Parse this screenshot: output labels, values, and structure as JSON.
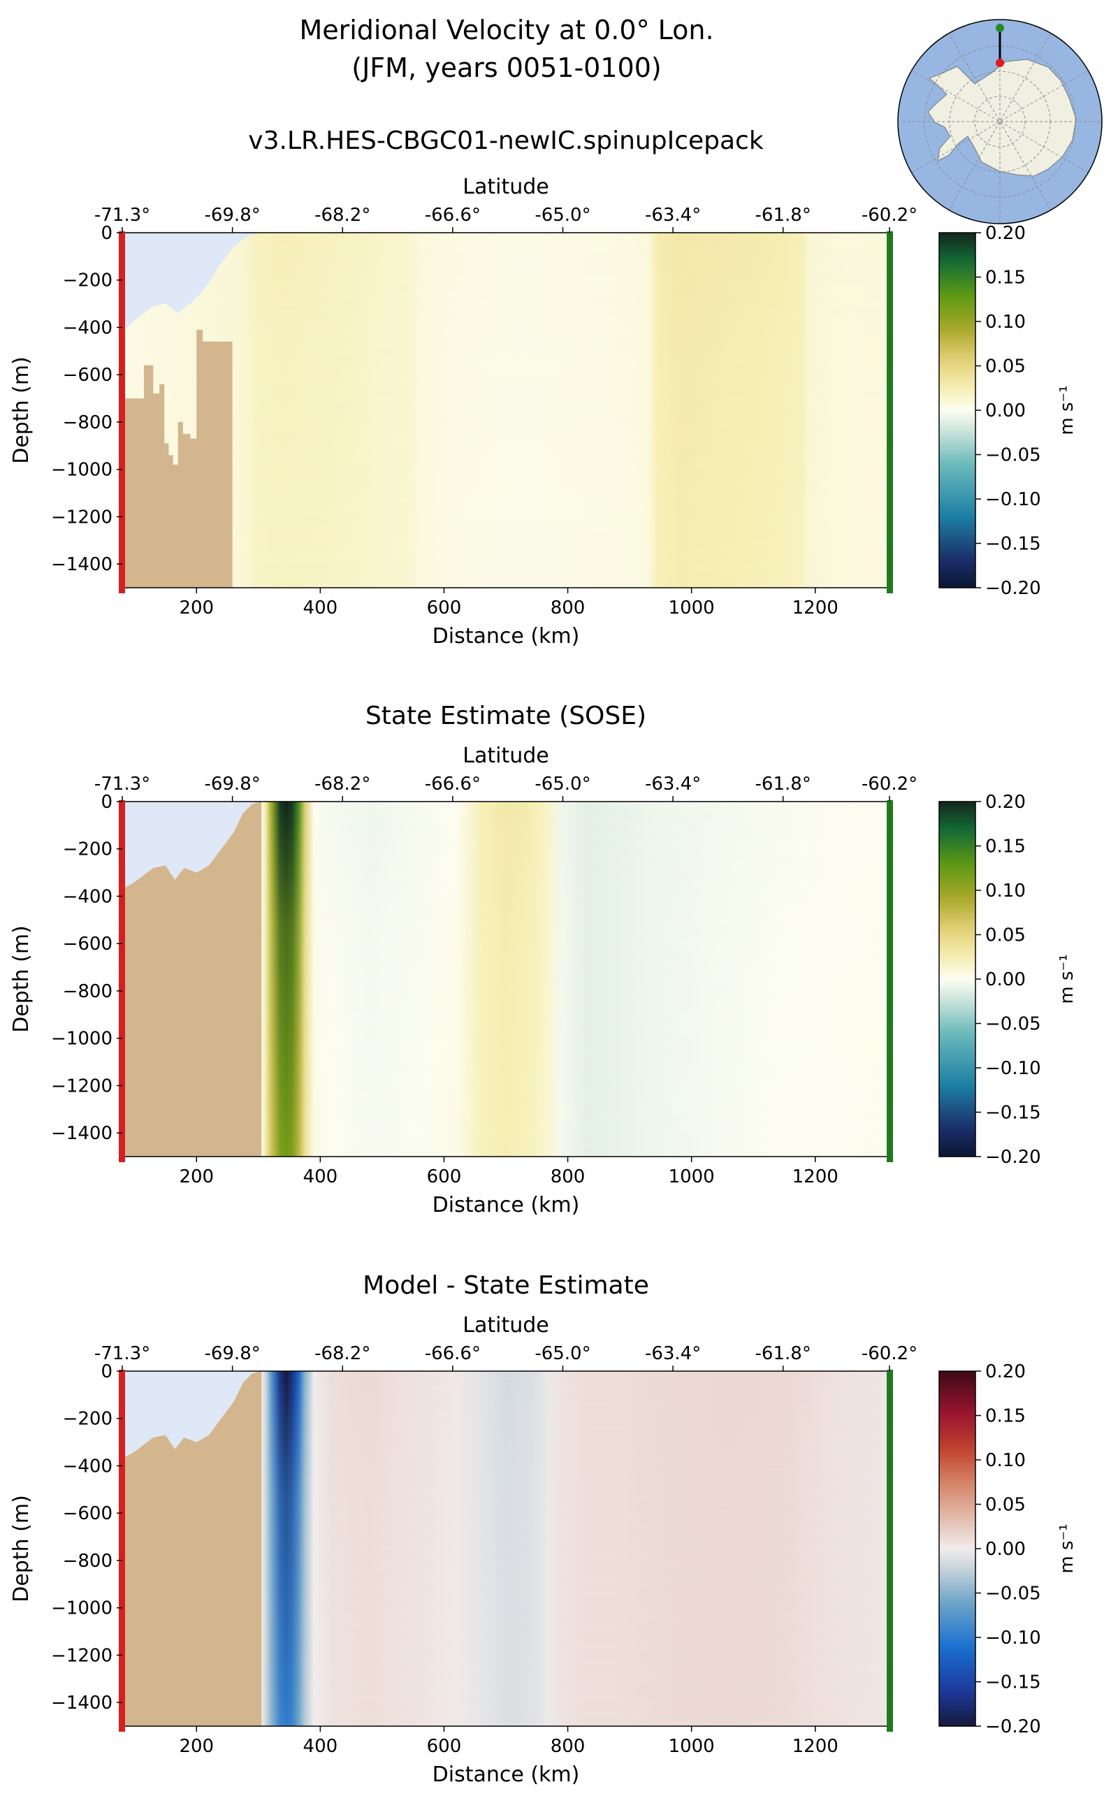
{
  "figure": {
    "title_line1": "Meridional Velocity at 0.0° Lon.",
    "title_line2": "(JFM, years 0051-0100)"
  },
  "inset_map": {
    "ocean_color": "#97b6e2",
    "land_color": "#efefe2",
    "north_marker_color": "#228b22",
    "south_marker_color": "#e51a1a"
  },
  "colors": {
    "seafloor": "#d3b68e",
    "ice_shelf": "#dfe8f6",
    "left_boundary": "#d42020",
    "right_boundary": "#1f7a1f"
  },
  "chart_data": [
    {
      "type": "heatmap",
      "id": "model",
      "title": "v3.LR.HES-CBGC01-newIC.spinupIcepack",
      "xlabel": "Distance (km)",
      "ylabel": "Depth (m)",
      "top_axis_label": "Latitude",
      "xlim": [
        80,
        1320
      ],
      "ylim": [
        -1500,
        0
      ],
      "xticks": [
        200,
        400,
        600,
        800,
        1000,
        1200
      ],
      "yticks": [
        0,
        -200,
        -400,
        -600,
        -800,
        -1000,
        -1200,
        -1400
      ],
      "top_ticks": [
        {
          "km": 80,
          "label": "-71.3°"
        },
        {
          "km": 258,
          "label": "-69.8°"
        },
        {
          "km": 436,
          "label": "-68.2°"
        },
        {
          "km": 614,
          "label": "-66.6°"
        },
        {
          "km": 792,
          "label": "-65.0°"
        },
        {
          "km": 970,
          "label": "-63.4°"
        },
        {
          "km": 1148,
          "label": "-61.8°"
        },
        {
          "km": 1320,
          "label": "-60.2°"
        }
      ],
      "colorbar": {
        "label": "m s⁻¹",
        "cmap": "speed_diverging",
        "range": [
          -0.2,
          0.2
        ],
        "ticks": [
          "0.20",
          "0.15",
          "0.10",
          "0.05",
          "0.00",
          "−0.05",
          "−0.10",
          "−0.15",
          "−0.20"
        ]
      },
      "field": {
        "x_km": [
          80,
          260,
          280,
          300,
          340,
          400,
          450,
          500,
          540,
          560,
          600,
          650,
          700,
          750,
          800,
          850,
          900,
          930,
          945,
          980,
          1020,
          1060,
          1100,
          1150,
          1180,
          1190,
          1250,
          1320
        ],
        "v_surface": [
          0.005,
          0.01,
          0.014,
          0.02,
          0.022,
          0.02,
          0.018,
          0.015,
          0.014,
          0.008,
          0.007,
          0.005,
          0.004,
          0.004,
          0.005,
          0.006,
          0.007,
          0.008,
          0.026,
          0.03,
          0.029,
          0.028,
          0.027,
          0.025,
          0.022,
          0.01,
          0.008,
          0.009
        ],
        "v_deep": [
          0.005,
          0.01,
          0.012,
          0.017,
          0.019,
          0.017,
          0.016,
          0.014,
          0.013,
          0.008,
          0.006,
          0.004,
          0.003,
          0.003,
          0.004,
          0.005,
          0.006,
          0.007,
          0.022,
          0.026,
          0.025,
          0.024,
          0.023,
          0.021,
          0.019,
          0.01,
          0.008,
          0.008
        ]
      },
      "seafloor": {
        "x_km": [
          80,
          90,
          115,
          130,
          140,
          148,
          155,
          162,
          170,
          178,
          190,
          200,
          210,
          258
        ],
        "depth_m": [
          -700,
          -700,
          -560,
          -680,
          -640,
          -890,
          -940,
          -980,
          -800,
          -850,
          -870,
          -410,
          -460,
          -640
        ]
      },
      "ice_shelf": {
        "x_km": [
          80,
          100,
          130,
          150,
          170,
          190,
          210,
          240,
          260,
          280,
          300
        ],
        "depth_m": [
          -420,
          -370,
          -310,
          -300,
          -340,
          -300,
          -250,
          -130,
          -60,
          -20,
          0
        ]
      }
    },
    {
      "type": "heatmap",
      "id": "sose",
      "title": "State Estimate (SOSE)",
      "xlabel": "Distance (km)",
      "ylabel": "Depth (m)",
      "top_axis_label": "Latitude",
      "xlim": [
        80,
        1320
      ],
      "ylim": [
        -1500,
        0
      ],
      "xticks": [
        200,
        400,
        600,
        800,
        1000,
        1200
      ],
      "yticks": [
        0,
        -200,
        -400,
        -600,
        -800,
        -1000,
        -1200,
        -1400
      ],
      "top_ticks": [
        {
          "km": 80,
          "label": "-71.3°"
        },
        {
          "km": 258,
          "label": "-69.8°"
        },
        {
          "km": 436,
          "label": "-68.2°"
        },
        {
          "km": 614,
          "label": "-66.6°"
        },
        {
          "km": 792,
          "label": "-65.0°"
        },
        {
          "km": 970,
          "label": "-63.4°"
        },
        {
          "km": 1148,
          "label": "-61.8°"
        },
        {
          "km": 1320,
          "label": "-60.2°"
        }
      ],
      "colorbar": {
        "label": "m s⁻¹",
        "cmap": "speed_diverging",
        "range": [
          -0.2,
          0.2
        ],
        "ticks": [
          "0.20",
          "0.15",
          "0.10",
          "0.05",
          "0.00",
          "−0.05",
          "−0.10",
          "−0.15",
          "−0.20"
        ]
      },
      "field": {
        "x_km": [
          80,
          305,
          312,
          322,
          335,
          345,
          355,
          365,
          375,
          390,
          420,
          480,
          560,
          620,
          660,
          700,
          740,
          770,
          790,
          830,
          880,
          950,
          1050,
          1150,
          1250,
          1320
        ],
        "v_surface": [
          0.0,
          0.0,
          0.03,
          0.1,
          0.19,
          0.2,
          0.19,
          0.14,
          0.06,
          0.0,
          -0.004,
          -0.006,
          -0.003,
          0.0,
          0.022,
          0.03,
          0.026,
          0.015,
          -0.006,
          -0.012,
          -0.01,
          -0.006,
          -0.004,
          -0.002,
          0.0,
          0.001
        ],
        "v_deep": [
          0.0,
          0.0,
          0.03,
          0.07,
          0.11,
          0.12,
          0.11,
          0.08,
          0.04,
          0.006,
          0.0,
          -0.003,
          -0.001,
          0.004,
          0.02,
          0.024,
          0.02,
          0.012,
          -0.004,
          -0.012,
          -0.01,
          -0.006,
          -0.003,
          0.0,
          0.001,
          0.002
        ]
      },
      "seafloor": {
        "x_km": [
          80,
          100,
          130,
          150,
          165,
          180,
          200,
          220,
          240,
          260,
          275,
          290,
          305
        ],
        "depth_m": [
          -370,
          -340,
          -280,
          -270,
          -330,
          -280,
          -300,
          -270,
          -200,
          -130,
          -50,
          -10,
          0
        ]
      },
      "ice_shelf": {
        "x_km": [],
        "depth_m": []
      }
    },
    {
      "type": "heatmap",
      "id": "diff",
      "title": "Model - State Estimate",
      "xlabel": "Distance (km)",
      "ylabel": "Depth (m)",
      "top_axis_label": "Latitude",
      "xlim": [
        80,
        1320
      ],
      "ylim": [
        -1500,
        0
      ],
      "xticks": [
        200,
        400,
        600,
        800,
        1000,
        1200
      ],
      "yticks": [
        0,
        -200,
        -400,
        -600,
        -800,
        -1000,
        -1200,
        -1400
      ],
      "top_ticks": [
        {
          "km": 80,
          "label": "-71.3°"
        },
        {
          "km": 258,
          "label": "-69.8°"
        },
        {
          "km": 436,
          "label": "-68.2°"
        },
        {
          "km": 614,
          "label": "-66.6°"
        },
        {
          "km": 792,
          "label": "-65.0°"
        },
        {
          "km": 970,
          "label": "-63.4°"
        },
        {
          "km": 1148,
          "label": "-61.8°"
        },
        {
          "km": 1320,
          "label": "-60.2°"
        }
      ],
      "colorbar": {
        "label": "m s⁻¹",
        "cmap": "balance",
        "range": [
          -0.2,
          0.2
        ],
        "ticks": [
          "0.20",
          "0.15",
          "0.10",
          "0.05",
          "0.00",
          "−0.05",
          "−0.10",
          "−0.15",
          "−0.20"
        ]
      },
      "field": {
        "x_km": [
          80,
          305,
          312,
          322,
          335,
          345,
          355,
          365,
          375,
          390,
          420,
          480,
          560,
          620,
          660,
          700,
          740,
          770,
          790,
          830,
          880,
          950,
          1050,
          1150,
          1250,
          1320
        ],
        "v_surface": [
          0.0,
          0.0,
          -0.02,
          -0.08,
          -0.17,
          -0.2,
          -0.17,
          -0.12,
          -0.05,
          0.0,
          0.01,
          0.012,
          0.006,
          0.003,
          -0.008,
          -0.015,
          -0.012,
          -0.004,
          0.006,
          0.01,
          0.01,
          0.012,
          0.014,
          0.013,
          0.006,
          0.004
        ],
        "v_deep": [
          0.0,
          0.0,
          -0.02,
          -0.05,
          -0.09,
          -0.1,
          -0.09,
          -0.06,
          -0.03,
          0.0,
          0.008,
          0.01,
          0.006,
          0.002,
          -0.006,
          -0.012,
          -0.01,
          -0.003,
          0.006,
          0.01,
          0.01,
          0.012,
          0.013,
          0.012,
          0.006,
          0.004
        ]
      },
      "seafloor": {
        "x_km": [
          80,
          100,
          130,
          150,
          165,
          180,
          200,
          220,
          240,
          260,
          275,
          290,
          305
        ],
        "depth_m": [
          -370,
          -340,
          -280,
          -270,
          -330,
          -280,
          -300,
          -270,
          -200,
          -130,
          -50,
          -10,
          0
        ]
      },
      "ice_shelf": {
        "x_km": [],
        "depth_m": []
      }
    }
  ]
}
